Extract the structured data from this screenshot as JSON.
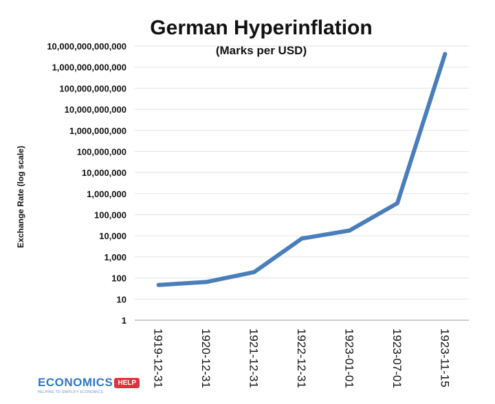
{
  "chart_data": {
    "type": "line",
    "title": "German Hyperinflation",
    "subtitle": "(Marks per USD)",
    "ylabel": "Exchange Rate (log scale)",
    "xlabel": "",
    "y_scale": "log",
    "ylim": [
      1,
      10000000000000
    ],
    "grid": true,
    "y_ticks": [
      {
        "value": 1,
        "label": "1"
      },
      {
        "value": 10,
        "label": "10"
      },
      {
        "value": 100,
        "label": "100"
      },
      {
        "value": 1000,
        "label": "1,000"
      },
      {
        "value": 10000,
        "label": "10,000"
      },
      {
        "value": 100000,
        "label": "100,000"
      },
      {
        "value": 1000000,
        "label": "1,000,000"
      },
      {
        "value": 10000000,
        "label": "10,000,000"
      },
      {
        "value": 100000000,
        "label": "100,000,000"
      },
      {
        "value": 1000000000,
        "label": "1,000,000,000"
      },
      {
        "value": 10000000000,
        "label": "10,000,000,000"
      },
      {
        "value": 100000000000,
        "label": "100,000,000,000"
      },
      {
        "value": 1000000000000,
        "label": "1,000,000,000,000"
      },
      {
        "value": 10000000000000,
        "label": "10,000,000,000,000"
      }
    ],
    "categories": [
      "1919-12-31",
      "1920-12-31",
      "1921-12-31",
      "1922-12-31",
      "1923-01-01",
      "1923-07-01",
      "1923-11-15"
    ],
    "series": [
      {
        "color": "#4a7ebb",
        "values": [
          47,
          65,
          190,
          7400,
          17900,
          350000,
          4200000000000
        ]
      }
    ]
  },
  "logo": {
    "text": "ECONOMICS",
    "badge": "HELP",
    "tagline": "HELPING TO SIMPLIFY ECONOMICS"
  }
}
